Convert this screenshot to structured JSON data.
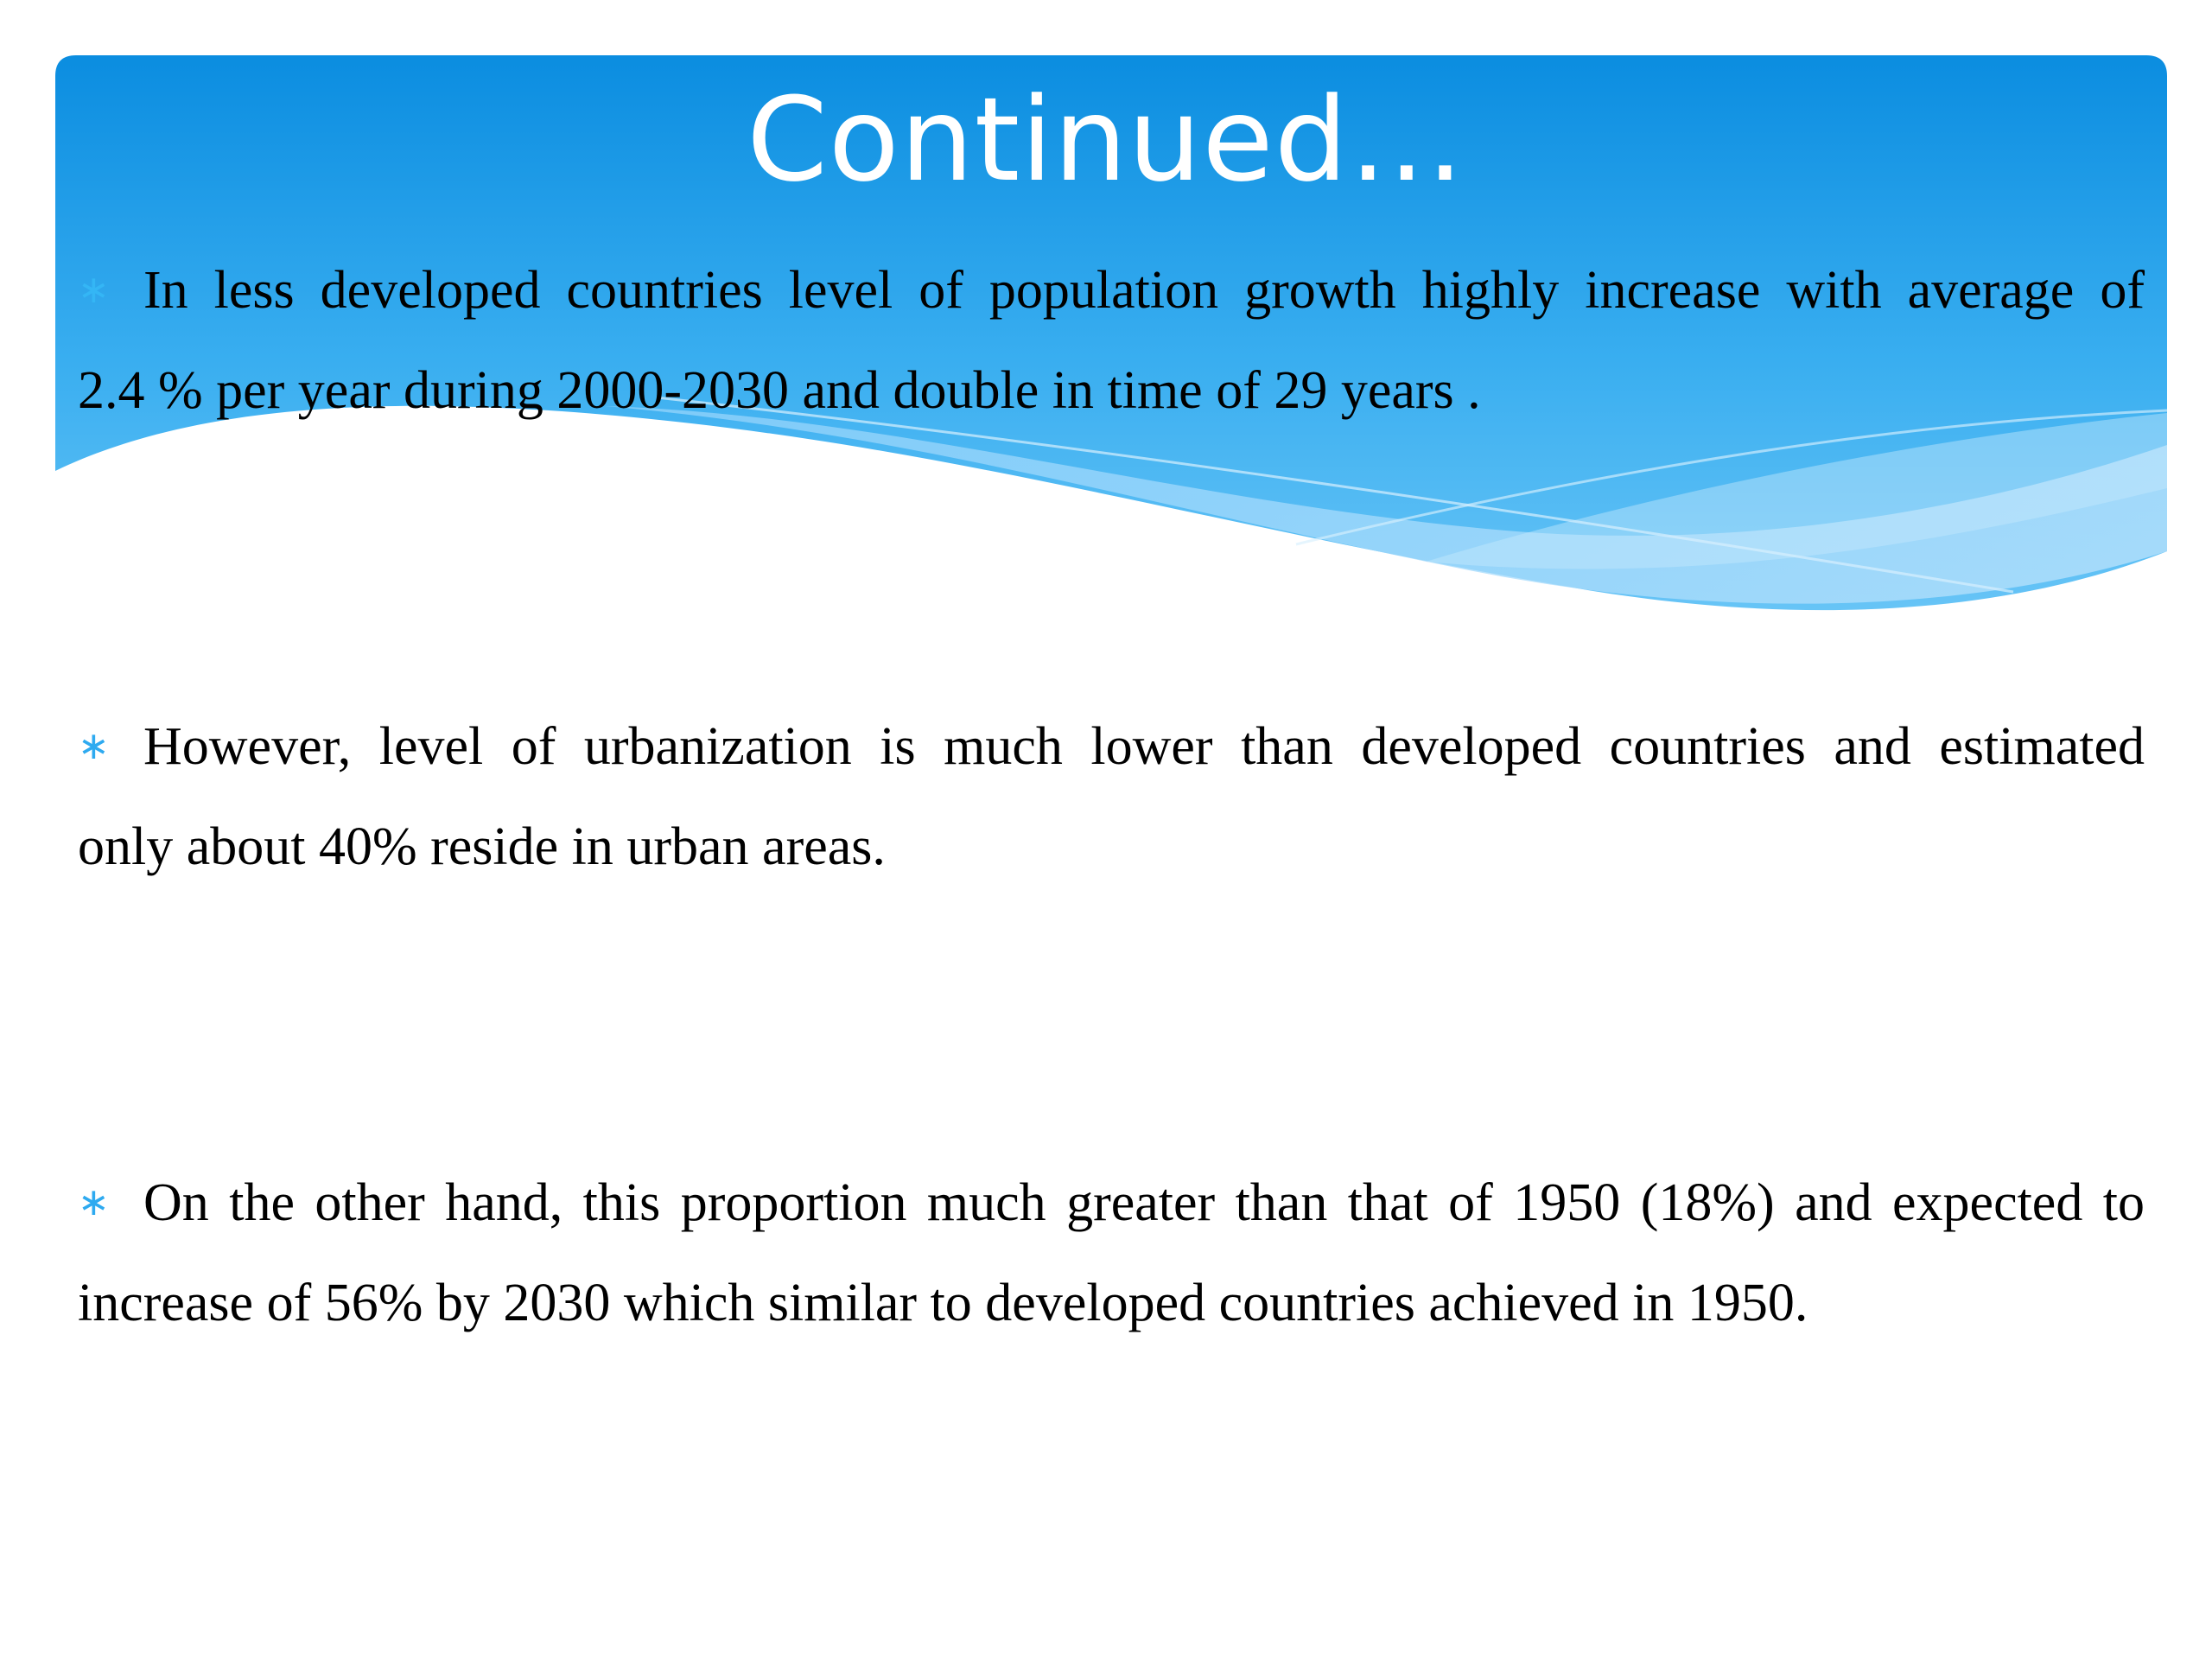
{
  "slide": {
    "title": "Continued…",
    "colors": {
      "banner_top": "#0d8fe2",
      "banner_mid": "#43b3f2",
      "wave_light": "#a4d9fb",
      "bullet": "#2eaaf0",
      "title_text": "#ffffff",
      "body_text": "#000000"
    },
    "icon": "asterisk-bullet-icon",
    "bullets": [
      {
        "line1": "In less developed countries level of population growth highly increase with average of",
        "line2": "2.4 % per year during 2000-2030 and double in time of 29 years ."
      },
      {
        "line1": "However, level of urbanization is much lower than developed countries and estimated",
        "line2": "only about 40% reside in urban areas."
      },
      {
        "line1": "On the other hand, this proportion much greater than that of 1950 (18%) and expected to",
        "line2": "increase of 56% by 2030 which similar to developed countries achieved in 1950."
      }
    ]
  }
}
